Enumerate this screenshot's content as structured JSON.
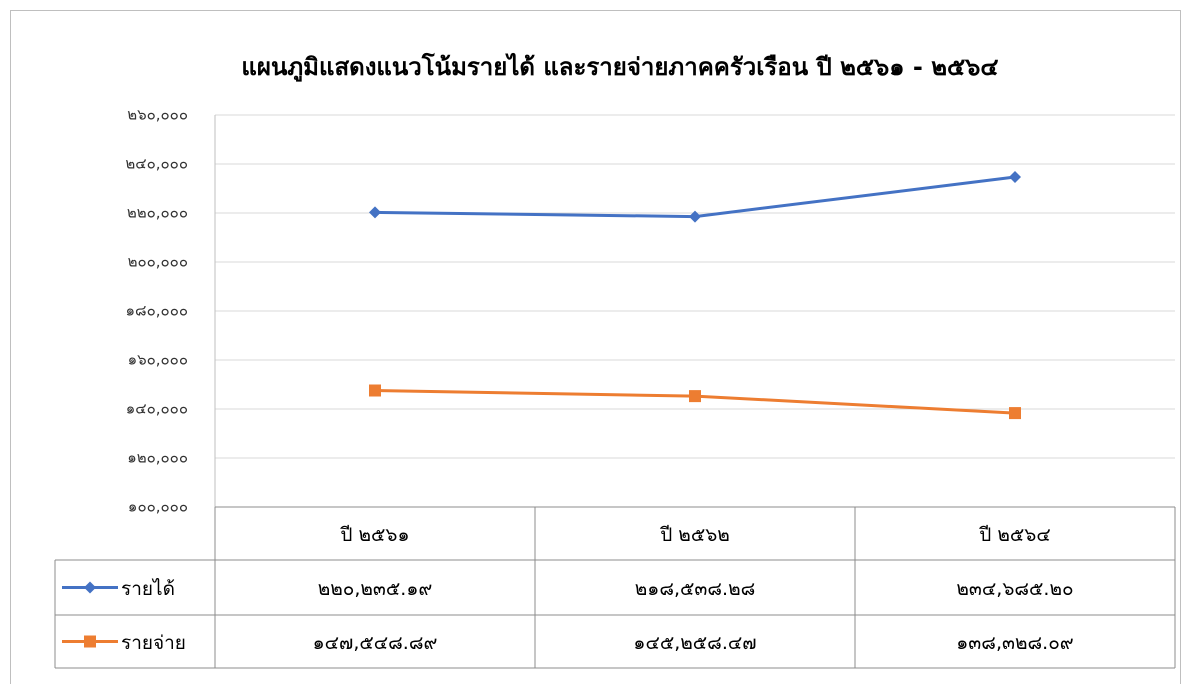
{
  "chart_data": {
    "type": "line",
    "title": "แผนภูมิแสดงแนวโน้มรายได้ และรายจ่ายภาคครัวเรือน ปี ๒๕๖๑ - ๒๕๖๔",
    "categories": [
      "ปี ๒๕๖๑",
      "ปี ๒๕๖๒",
      "ปี ๒๕๖๔"
    ],
    "series": [
      {
        "name": "รายได้",
        "color": "#4472c4",
        "marker": "diamond",
        "values": [
          220235.19,
          218538.28,
          234685.2
        ],
        "value_labels": [
          "๒๒๐,๒๓๕.๑๙",
          "๒๑๘,๕๓๘.๒๘",
          "๒๓๔,๖๘๕.๒๐"
        ]
      },
      {
        "name": "รายจ่าย",
        "color": "#ed7d31",
        "marker": "square",
        "values": [
          147548.89,
          145258.47,
          138328.09
        ],
        "value_labels": [
          "๑๔๗,๕๔๘.๘๙",
          "๑๔๕,๒๕๘.๔๗",
          "๑๓๘,๓๒๘.๐๙"
        ]
      }
    ],
    "ylim": [
      100000,
      260000
    ],
    "yticks": [
      {
        "value": 100000,
        "label": "๑๐๐,๐๐๐"
      },
      {
        "value": 120000,
        "label": "๑๒๐,๐๐๐"
      },
      {
        "value": 140000,
        "label": "๑๔๐,๐๐๐"
      },
      {
        "value": 160000,
        "label": "๑๖๐,๐๐๐"
      },
      {
        "value": 180000,
        "label": "๑๘๐,๐๐๐"
      },
      {
        "value": 200000,
        "label": "๒๐๐,๐๐๐"
      },
      {
        "value": 220000,
        "label": "๒๒๐,๐๐๐"
      },
      {
        "value": 240000,
        "label": "๒๔๐,๐๐๐"
      },
      {
        "value": 260000,
        "label": "๒๖๐,๐๐๐"
      }
    ],
    "grid": true
  }
}
